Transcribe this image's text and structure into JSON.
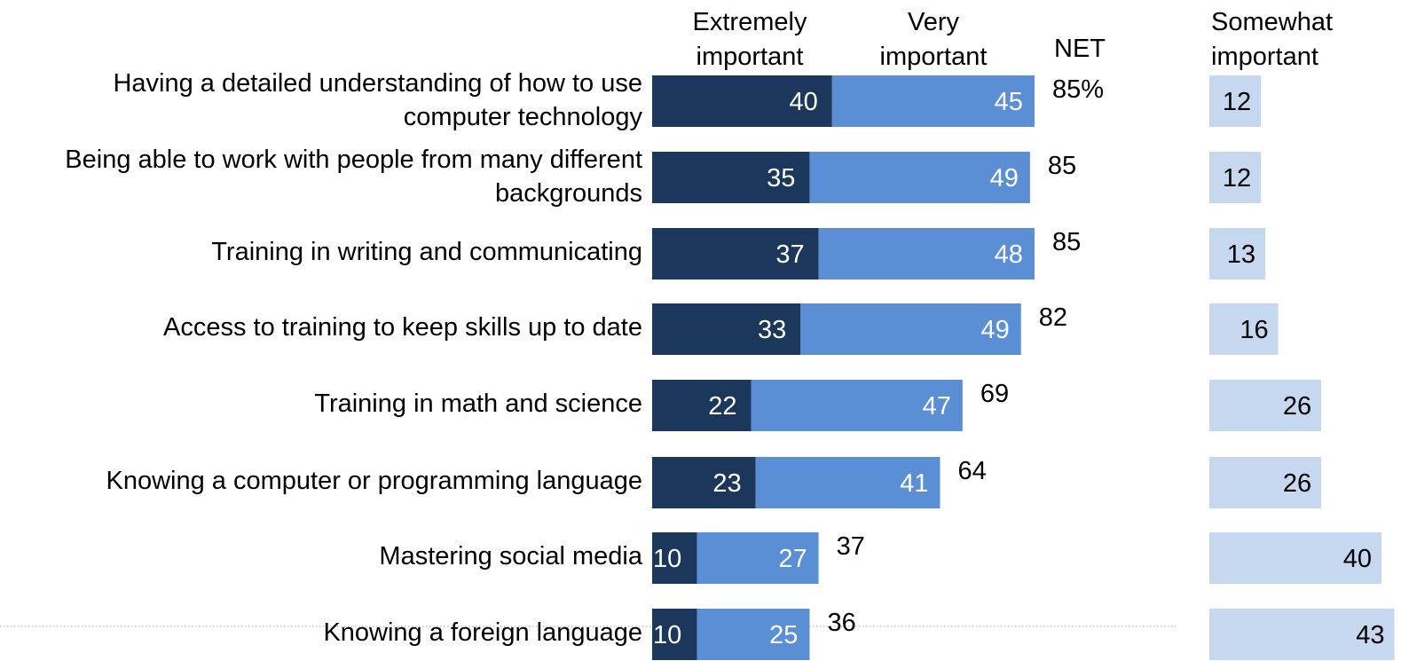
{
  "chart_data": {
    "type": "bar",
    "orientation": "horizontal",
    "stacked": true,
    "headers": {
      "extremely": [
        "Extremely",
        "important"
      ],
      "very": [
        "Very",
        "important"
      ],
      "net": "NET",
      "somewhat": [
        "Somewhat",
        "important"
      ]
    },
    "categories": [
      [
        "Having a detailed understanding of how to use",
        "computer technology"
      ],
      [
        "Being able to work with people from many different",
        "backgrounds"
      ],
      [
        "Training in writing and communicating"
      ],
      [
        "Access to training to keep skills up to date"
      ],
      [
        "Training in math and science"
      ],
      [
        "Knowing a computer or programming language"
      ],
      [
        "Mastering social media"
      ],
      [
        "Knowing a foreign language"
      ]
    ],
    "series": [
      {
        "name": "Extremely important",
        "values": [
          40,
          35,
          37,
          33,
          22,
          23,
          10,
          10
        ],
        "color": "#1b375b"
      },
      {
        "name": "Very important",
        "values": [
          45,
          49,
          48,
          49,
          47,
          41,
          27,
          25
        ],
        "color": "#5a8fd6"
      }
    ],
    "net_values": [
      85,
      85,
      85,
      82,
      69,
      64,
      37,
      36
    ],
    "net_labels": [
      "85%",
      "85",
      "85",
      "82",
      "69",
      "64",
      "37",
      "36"
    ],
    "somewhat": {
      "name": "Somewhat important",
      "values": [
        12,
        12,
        13,
        16,
        26,
        26,
        40,
        43
      ],
      "color": "#c5d8ef"
    },
    "xlim": [
      0,
      100
    ],
    "grid": false,
    "legend": "top"
  }
}
